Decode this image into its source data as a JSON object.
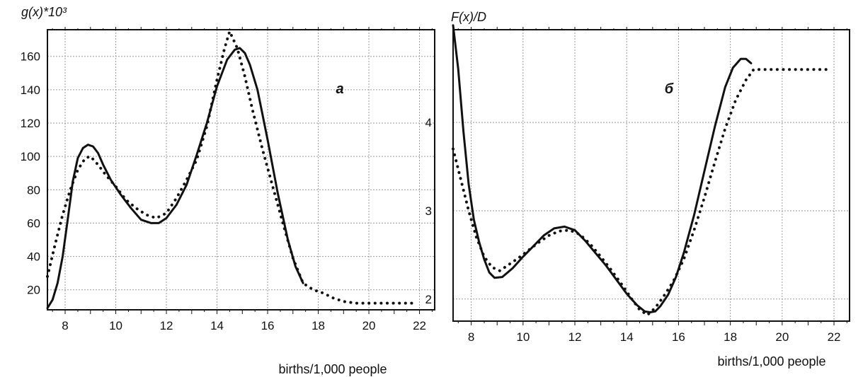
{
  "chart_data": [
    {
      "type": "line",
      "panel_label": "а",
      "ylabel": "g(x)*10³",
      "xlabel": "births/1,000 people",
      "xlim": [
        7.3,
        22.6
      ],
      "ylim": [
        8,
        176
      ],
      "x_ticks": [
        "8",
        "10",
        "12",
        "14",
        "16",
        "18",
        "20",
        "22"
      ],
      "y_ticks": [
        "20",
        "40",
        "60",
        "80",
        "100",
        "120",
        "140",
        "160"
      ],
      "grid": true,
      "series": [
        {
          "style": "solid",
          "x": [
            7.3,
            7.5,
            7.7,
            7.9,
            8.1,
            8.3,
            8.5,
            8.7,
            8.9,
            9.1,
            9.3,
            9.5,
            9.8,
            10.2,
            10.6,
            11.0,
            11.4,
            11.7,
            12.0,
            12.4,
            12.8,
            13.2,
            13.6,
            14.0,
            14.4,
            14.7,
            14.9,
            15.1,
            15.3,
            15.6,
            16.0,
            16.4,
            16.8,
            17.1,
            17.4
          ],
          "y": [
            9,
            14,
            24,
            40,
            62,
            85,
            99,
            105,
            107,
            106,
            102,
            95,
            86,
            77,
            69,
            62,
            60,
            60,
            63,
            71,
            83,
            101,
            120,
            142,
            158,
            164,
            165,
            162,
            155,
            140,
            110,
            78,
            50,
            34,
            24
          ]
        },
        {
          "style": "dotted",
          "x": [
            7.3,
            7.6,
            7.9,
            8.2,
            8.5,
            8.8,
            9.0,
            9.3,
            9.6,
            10.0,
            10.4,
            10.8,
            11.2,
            11.6,
            12.0,
            12.4,
            12.8,
            13.2,
            13.6,
            14.0,
            14.3,
            14.5,
            14.8,
            15.1,
            15.4,
            15.8,
            16.2,
            16.6,
            17.0,
            17.4,
            17.8,
            18.2,
            18.6,
            19.0,
            19.5,
            20.0,
            20.5,
            21.0,
            21.5,
            21.8
          ],
          "y": [
            28,
            47,
            65,
            80,
            92,
            99,
            100,
            95,
            89,
            82,
            74,
            69,
            65,
            63,
            66,
            75,
            86,
            98,
            118,
            146,
            165,
            175,
            165,
            148,
            128,
            104,
            82,
            60,
            39,
            24,
            20,
            18,
            15,
            13,
            12,
            12,
            12,
            12,
            12,
            12
          ]
        }
      ]
    },
    {
      "type": "line",
      "panel_label": "б",
      "ylabel": "F(x)/D",
      "xlabel": "births/1,000 people",
      "xlim": [
        7.3,
        22.6
      ],
      "ylim": [
        1.75,
        5.05
      ],
      "x_ticks": [
        "8",
        "10",
        "12",
        "14",
        "16",
        "18",
        "20",
        "22"
      ],
      "y_ticks": [
        "2",
        "3",
        "4"
      ],
      "grid": true,
      "series": [
        {
          "style": "solid",
          "x": [
            7.3,
            7.5,
            7.7,
            7.9,
            8.1,
            8.3,
            8.5,
            8.7,
            8.9,
            9.2,
            9.6,
            10.0,
            10.4,
            10.8,
            11.2,
            11.6,
            12.0,
            12.4,
            12.8,
            13.2,
            13.6,
            14.0,
            14.4,
            14.7,
            14.9,
            15.1,
            15.3,
            15.6,
            15.9,
            16.2,
            16.6,
            17.0,
            17.4,
            17.8,
            18.1,
            18.4,
            18.6,
            18.8
          ],
          "y": [
            5.1,
            4.6,
            3.9,
            3.3,
            2.9,
            2.65,
            2.45,
            2.3,
            2.24,
            2.25,
            2.35,
            2.48,
            2.6,
            2.72,
            2.8,
            2.82,
            2.78,
            2.66,
            2.52,
            2.38,
            2.22,
            2.06,
            1.93,
            1.86,
            1.85,
            1.86,
            1.92,
            2.05,
            2.25,
            2.52,
            2.95,
            3.45,
            3.95,
            4.4,
            4.62,
            4.72,
            4.72,
            4.67
          ]
        },
        {
          "style": "dotted",
          "x": [
            7.3,
            7.6,
            7.9,
            8.2,
            8.5,
            8.8,
            9.1,
            9.4,
            9.8,
            10.2,
            10.6,
            11.0,
            11.4,
            11.8,
            12.2,
            12.6,
            13.0,
            13.4,
            13.8,
            14.2,
            14.5,
            14.8,
            15.1,
            15.4,
            15.8,
            16.2,
            16.6,
            17.0,
            17.4,
            17.8,
            18.2,
            18.6,
            18.9,
            19.2,
            19.6,
            20.0,
            20.5,
            21.0,
            21.5,
            21.8
          ],
          "y": [
            3.7,
            3.35,
            3.0,
            2.7,
            2.48,
            2.36,
            2.32,
            2.38,
            2.46,
            2.55,
            2.64,
            2.72,
            2.77,
            2.78,
            2.73,
            2.62,
            2.48,
            2.33,
            2.17,
            2.0,
            1.88,
            1.82,
            1.9,
            2.02,
            2.2,
            2.45,
            2.78,
            3.15,
            3.55,
            3.93,
            4.25,
            4.48,
            4.6,
            4.6,
            4.6,
            4.6,
            4.6,
            4.6,
            4.6,
            4.6
          ]
        }
      ]
    }
  ]
}
